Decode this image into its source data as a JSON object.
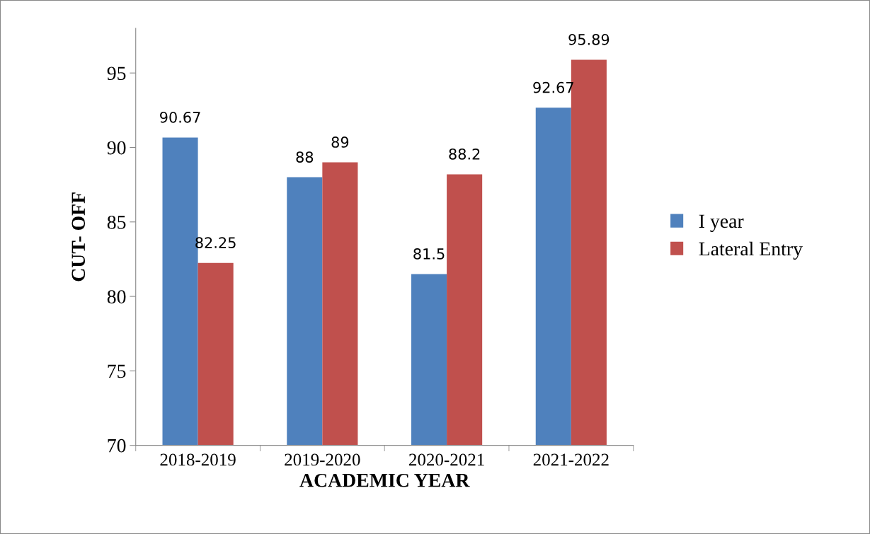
{
  "chart_data": {
    "type": "bar",
    "xlabel": "ACADEMIC YEAR",
    "ylabel": "CUT- OFF",
    "categories": [
      "2018-2019",
      "2019-2020",
      "2020-2021",
      "2021-2022"
    ],
    "series": [
      {
        "name": "I year",
        "color": "#4f81bd",
        "values": [
          90.67,
          88,
          81.5,
          92.67
        ]
      },
      {
        "name": "Lateral Entry",
        "color": "#c0504d",
        "values": [
          82.25,
          89,
          88.2,
          95.89
        ]
      }
    ],
    "ylim": [
      70,
      98
    ],
    "yticks": [
      70,
      75,
      80,
      85,
      90,
      95
    ],
    "grid": false,
    "legend": "right",
    "data_labels": true
  }
}
